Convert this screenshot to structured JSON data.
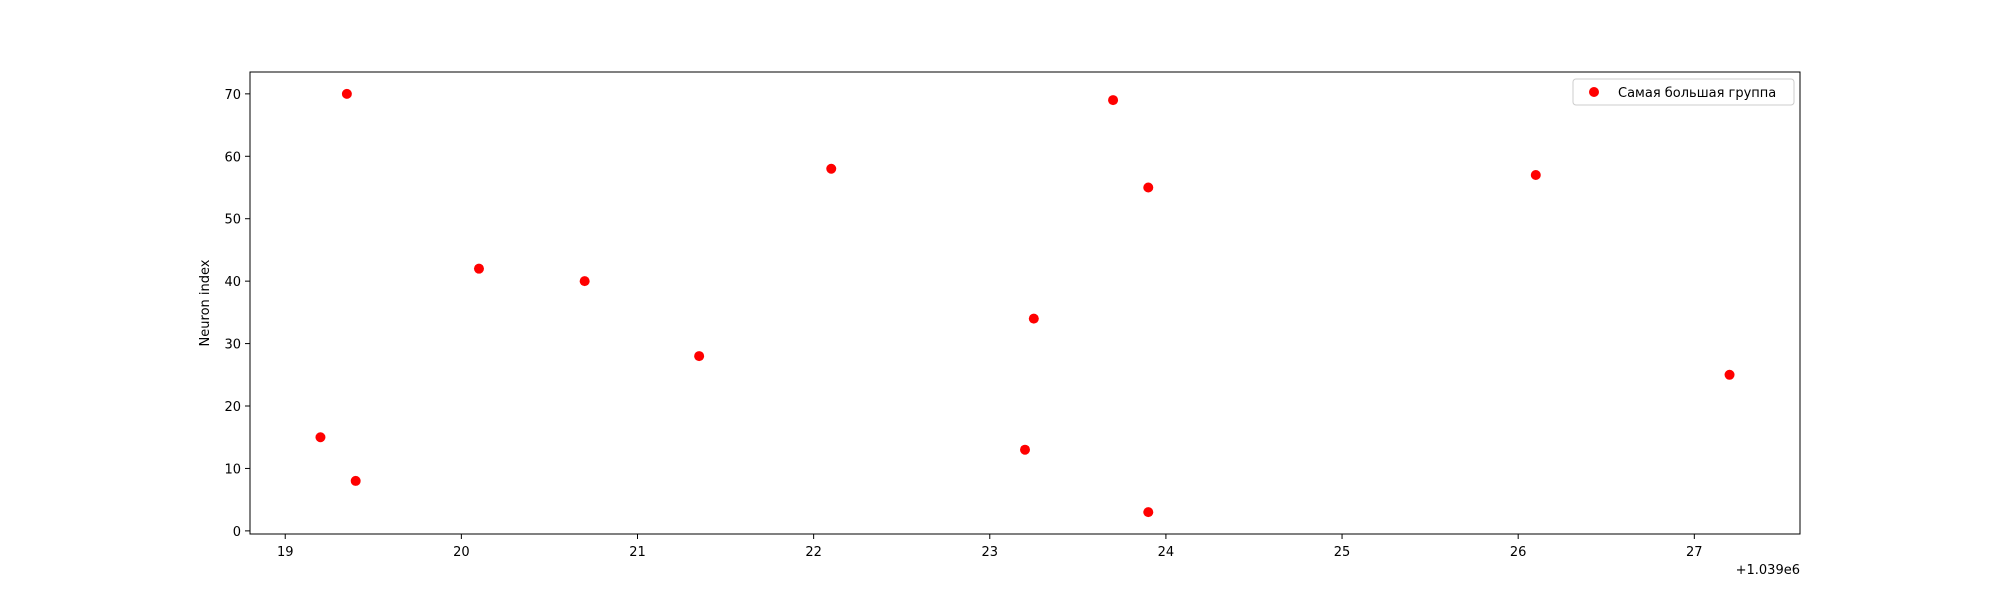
{
  "chart_data": {
    "type": "scatter",
    "title": "",
    "xlabel": "",
    "ylabel": "Neuron index",
    "x_offset_label": "+1.039e6",
    "xlim": [
      18.8,
      27.6
    ],
    "ylim": [
      -0.5,
      73.5
    ],
    "x_ticks": [
      19,
      20,
      21,
      22,
      23,
      24,
      25,
      26,
      27
    ],
    "y_ticks": [
      0,
      10,
      20,
      30,
      40,
      50,
      60,
      70
    ],
    "grid": false,
    "legend_position": "top-right",
    "series": [
      {
        "name": "Самая большая группа",
        "color": "#ff0000",
        "points": [
          {
            "x": 19.2,
            "y": 15
          },
          {
            "x": 19.35,
            "y": 70
          },
          {
            "x": 19.4,
            "y": 8
          },
          {
            "x": 20.1,
            "y": 42
          },
          {
            "x": 20.7,
            "y": 40
          },
          {
            "x": 21.35,
            "y": 28
          },
          {
            "x": 22.1,
            "y": 58
          },
          {
            "x": 23.2,
            "y": 13
          },
          {
            "x": 23.25,
            "y": 34
          },
          {
            "x": 23.7,
            "y": 69
          },
          {
            "x": 23.9,
            "y": 55
          },
          {
            "x": 23.9,
            "y": 3
          },
          {
            "x": 26.1,
            "y": 57
          },
          {
            "x": 27.2,
            "y": 25
          }
        ]
      }
    ]
  }
}
